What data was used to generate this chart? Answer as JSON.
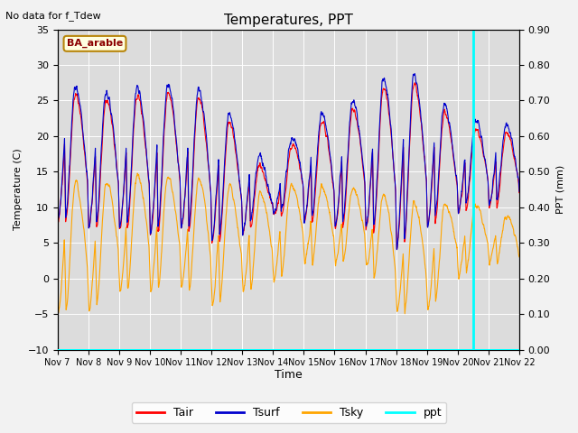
{
  "title": "Temperatures, PPT",
  "xlabel": "Time",
  "ylabel_left": "Temperature (C)",
  "ylabel_right": "PPT (mm)",
  "ylim_left": [
    -10,
    35
  ],
  "ylim_right": [
    0.0,
    0.9
  ],
  "yticks_left": [
    -10,
    -5,
    0,
    5,
    10,
    15,
    20,
    25,
    30,
    35
  ],
  "yticks_right": [
    0.0,
    0.1,
    0.2,
    0.3,
    0.4,
    0.5,
    0.6,
    0.7,
    0.8,
    0.9
  ],
  "xtick_labels": [
    "Nov 7",
    "Nov 8",
    "Nov 9",
    "Nov 10",
    "Nov 11",
    "Nov 12",
    "Nov 13",
    "Nov 14",
    "Nov 15",
    "Nov 16",
    "Nov 17",
    "Nov 18",
    "Nov 19",
    "Nov 20",
    "Nov 21",
    "Nov 22"
  ],
  "no_data_text": "No data for f_Tdew",
  "station_label": "BA_arable",
  "station_label_color": "#8B0000",
  "station_box_edgecolor": "#B8860B",
  "colors": {
    "Tair": "#FF0000",
    "Tsurf": "#0000CD",
    "Tsky": "#FFA500",
    "ppt": "#00FFFF"
  },
  "bg_color": "#DCDCDC",
  "cyan_vline_x": 13.5,
  "figsize": [
    6.4,
    4.8
  ],
  "dpi": 100,
  "day_peaks_air": [
    27,
    25,
    25,
    26,
    26,
    25,
    20,
    13,
    22,
    22,
    25,
    28,
    27,
    21,
    21,
    20
  ],
  "day_mins_air": [
    8,
    7,
    7,
    6,
    7,
    5,
    6,
    9,
    8,
    7,
    7,
    4,
    7,
    9,
    10,
    10
  ],
  "day_peaks_sky": [
    14,
    13,
    14,
    15,
    14,
    14,
    12,
    12,
    14,
    12,
    13,
    11,
    10,
    11,
    10,
    8
  ],
  "day_mins_sky": [
    -5,
    -5,
    -2,
    -2,
    -1,
    -4,
    -2,
    -1,
    2,
    2,
    2,
    -5,
    -5,
    0,
    2,
    2
  ]
}
